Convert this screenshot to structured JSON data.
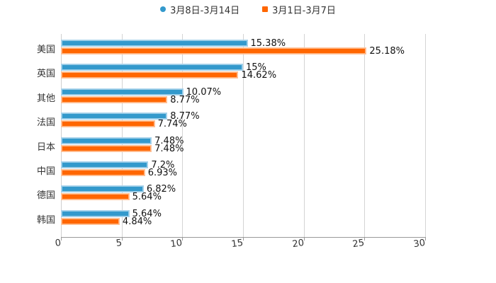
{
  "chart_data": {
    "type": "bar",
    "orientation": "horizontal",
    "title": "",
    "xlabel": "",
    "ylabel": "",
    "xlim": [
      0,
      30
    ],
    "x_ticks": [
      "0",
      "5",
      "10",
      "15",
      "20",
      "25",
      "30"
    ],
    "grid": true,
    "legend_position": "top",
    "categories": [
      "美国",
      "英国",
      "其他",
      "法国",
      "日本",
      "中国",
      "德国",
      "韩国"
    ],
    "series": [
      {
        "name": "3月8日-3月14日",
        "color": "#3399cc",
        "values": [
          15.38,
          15,
          10.07,
          8.77,
          7.48,
          7.2,
          6.82,
          5.64
        ],
        "labels": [
          "15.38%",
          "15%",
          "10.07%",
          "8.77%",
          "7.48%",
          "7.2%",
          "6.82%",
          "5.64%"
        ]
      },
      {
        "name": "3月1日-3月7日",
        "color": "#ff6600",
        "values": [
          25.18,
          14.62,
          8.77,
          7.74,
          7.48,
          6.93,
          5.64,
          4.84
        ],
        "labels": [
          "25.18%",
          "14.62%",
          "8.77%",
          "7.74%",
          "7.48%",
          "6.93%",
          "5.64%",
          "4.84%"
        ]
      }
    ]
  },
  "legend": {
    "items": [
      {
        "label": "3月8日-3月14日",
        "color": "#3399cc"
      },
      {
        "label": "3月1日-3月7日",
        "color": "#ff6600"
      }
    ]
  }
}
